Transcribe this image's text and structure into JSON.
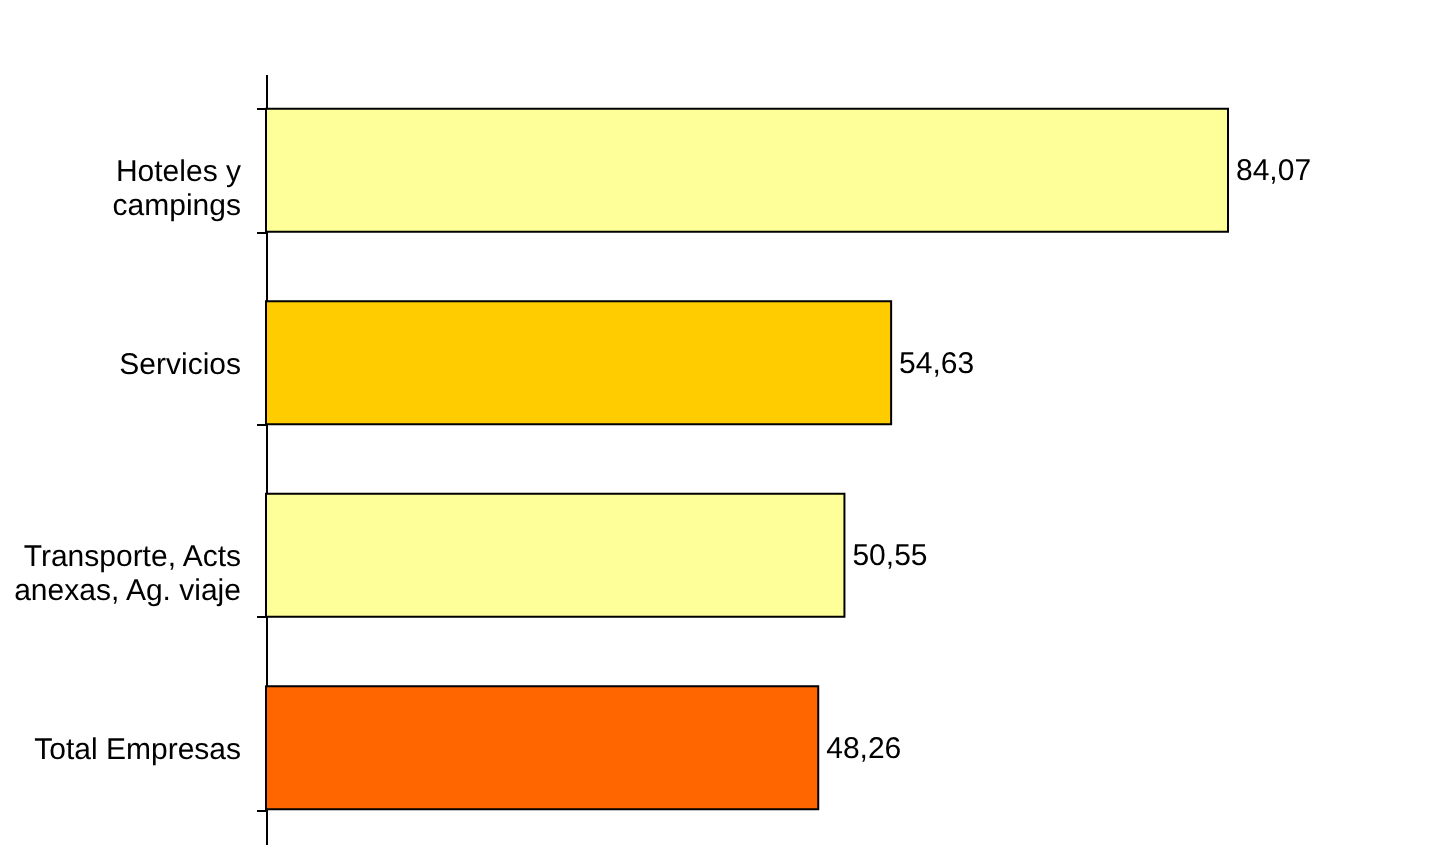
{
  "chart_data": {
    "type": "bar",
    "orientation": "horizontal",
    "categories": [
      "Hoteles y\ncampings",
      "Servicios",
      "Transporte, Acts\nanexas, Ag. viaje",
      "Total Empresas"
    ],
    "values": [
      84.07,
      54.63,
      50.55,
      48.26
    ],
    "colors": [
      "#ffff99",
      "#ffcc00",
      "#ffff99",
      "#ff6600"
    ],
    "value_labels": [
      "84,07",
      "54,63",
      "50,55",
      "48,26"
    ],
    "grid": false
  }
}
